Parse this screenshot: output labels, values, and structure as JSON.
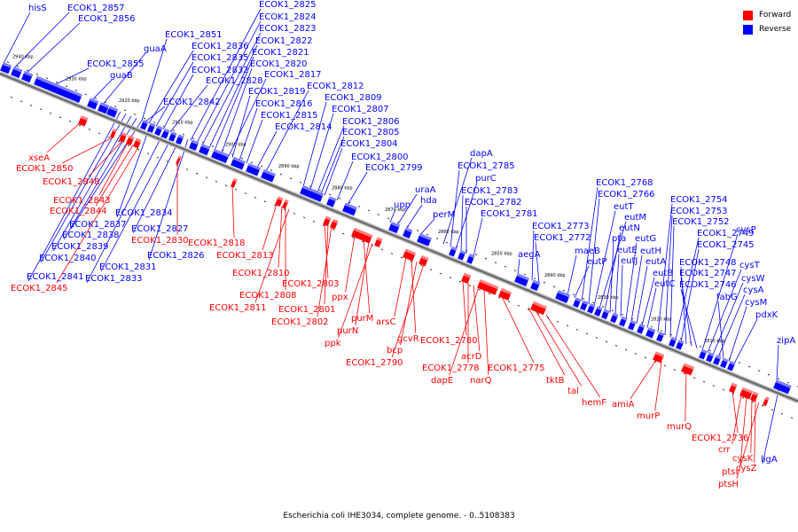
{
  "legend": {
    "forward_label": "Forward",
    "reverse_label": "Reverse",
    "forward_color": "#ff0000",
    "reverse_color": "#0000ff"
  },
  "footer": {
    "caption": "Escherichia coli IHE3034, complete genome. - 0..5108383"
  },
  "scale_labels": [
    {
      "kbp": 2940,
      "text": "2940 kbp"
    },
    {
      "kbp": 2930,
      "text": "2930 kbp"
    },
    {
      "kbp": 2920,
      "text": "2920 kbp"
    },
    {
      "kbp": 2910,
      "text": "2910 kbp"
    },
    {
      "kbp": 2900,
      "text": "2900 kbp"
    },
    {
      "kbp": 2890,
      "text": "2890 kbp"
    },
    {
      "kbp": 2880,
      "text": "2880 kbp"
    },
    {
      "kbp": 2870,
      "text": "2870 kbp"
    },
    {
      "kbp": 2860,
      "text": "2860 kbp"
    },
    {
      "kbp": 2850,
      "text": "2850 kbp"
    },
    {
      "kbp": 2840,
      "text": "2840 kbp"
    },
    {
      "kbp": 2830,
      "text": "2830 kbp"
    },
    {
      "kbp": 2820,
      "text": "2820 kbp"
    },
    {
      "kbp": 2810,
      "text": "2810 kbp"
    }
  ],
  "reverse_genes": [
    "hisS",
    "ECOK1_2857",
    "ECOK1_2856",
    "ECOK1_2855",
    "guaB",
    "guaA",
    "ECOK1_2851",
    "ECOK1_2836",
    "ECOK1_2835",
    "ECOK1_2832",
    "ECOK1_2828",
    "ECOK1_2842",
    "ECOK1_2825",
    "ECOK1_2824",
    "ECOK1_2823",
    "ECOK1_2822",
    "ECOK1_2821",
    "ECOK1_2820",
    "ECOK1_2817",
    "ECOK1_2819",
    "ECOK1_2816",
    "ECOK1_2815",
    "ECOK1_2814",
    "ECOK1_2812",
    "ECOK1_2809",
    "ECOK1_2807",
    "ECOK1_2806",
    "ECOK1_2805",
    "ECOK1_2804",
    "ECOK1_2800",
    "ECOK1_2799",
    "upp",
    "uraA",
    "hda",
    "perM",
    "dapA",
    "ECOK1_2785",
    "purC",
    "ECOK1_2783",
    "ECOK1_2782",
    "ECOK1_2781",
    "aegA",
    "ECOK1_2773",
    "ECOK1_2772",
    "maeB",
    "eutP",
    "ECOK1_2768",
    "ECOK1_2766",
    "eutT",
    "eutM",
    "eutN",
    "pta",
    "eutE",
    "eutJ",
    "eutG",
    "eutH",
    "eutA",
    "eutB",
    "eutC",
    "ECOK1_2754",
    "ECOK1_2753",
    "ECOK1_2752",
    "ECOK1_2749",
    "ECOK1_2745",
    "ECOK1_2748",
    "ECOK1_2747",
    "ECOK1_2746",
    "cysP",
    "cysT",
    "cysW",
    "cysA",
    "fabG",
    "cysM",
    "pdxK",
    "zipA",
    "ligA",
    "ECOK1_2834",
    "ECOK1_2837",
    "ECOK1_2838",
    "ECOK1_2839",
    "ECOK1_2840",
    "ECOK1_2841",
    "ECOK1_2831",
    "ECOK1_2833",
    "ECOK1_2827",
    "ECOK1_2826"
  ],
  "forward_genes": [
    "xseA",
    "ECOK1_2850",
    "ECOK1_2848",
    "ECOK1_2843",
    "ECOK1_2844",
    "ECOK1_2845",
    "ECOK1_2830",
    "ECOK1_2818",
    "ECOK1_2813",
    "ECOK1_2810",
    "ECOK1_2808",
    "ECOK1_2811",
    "ECOK1_2803",
    "ECOK1_2801",
    "ECOK1_2802",
    "ppx",
    "purM",
    "purN",
    "ppk",
    "arsC",
    "gcvR",
    "bcp",
    "ECOK1_2790",
    "ECOK1_2780",
    "ECOK1_2778",
    "acrD",
    "dapE",
    "narQ",
    "ECOK1_2775",
    "tktB",
    "tal",
    "hemF",
    "amiA",
    "murP",
    "murQ",
    "ECOK1_2736",
    "crr",
    "ptsI",
    "cysK",
    "cysZ",
    "ptsH"
  ]
}
